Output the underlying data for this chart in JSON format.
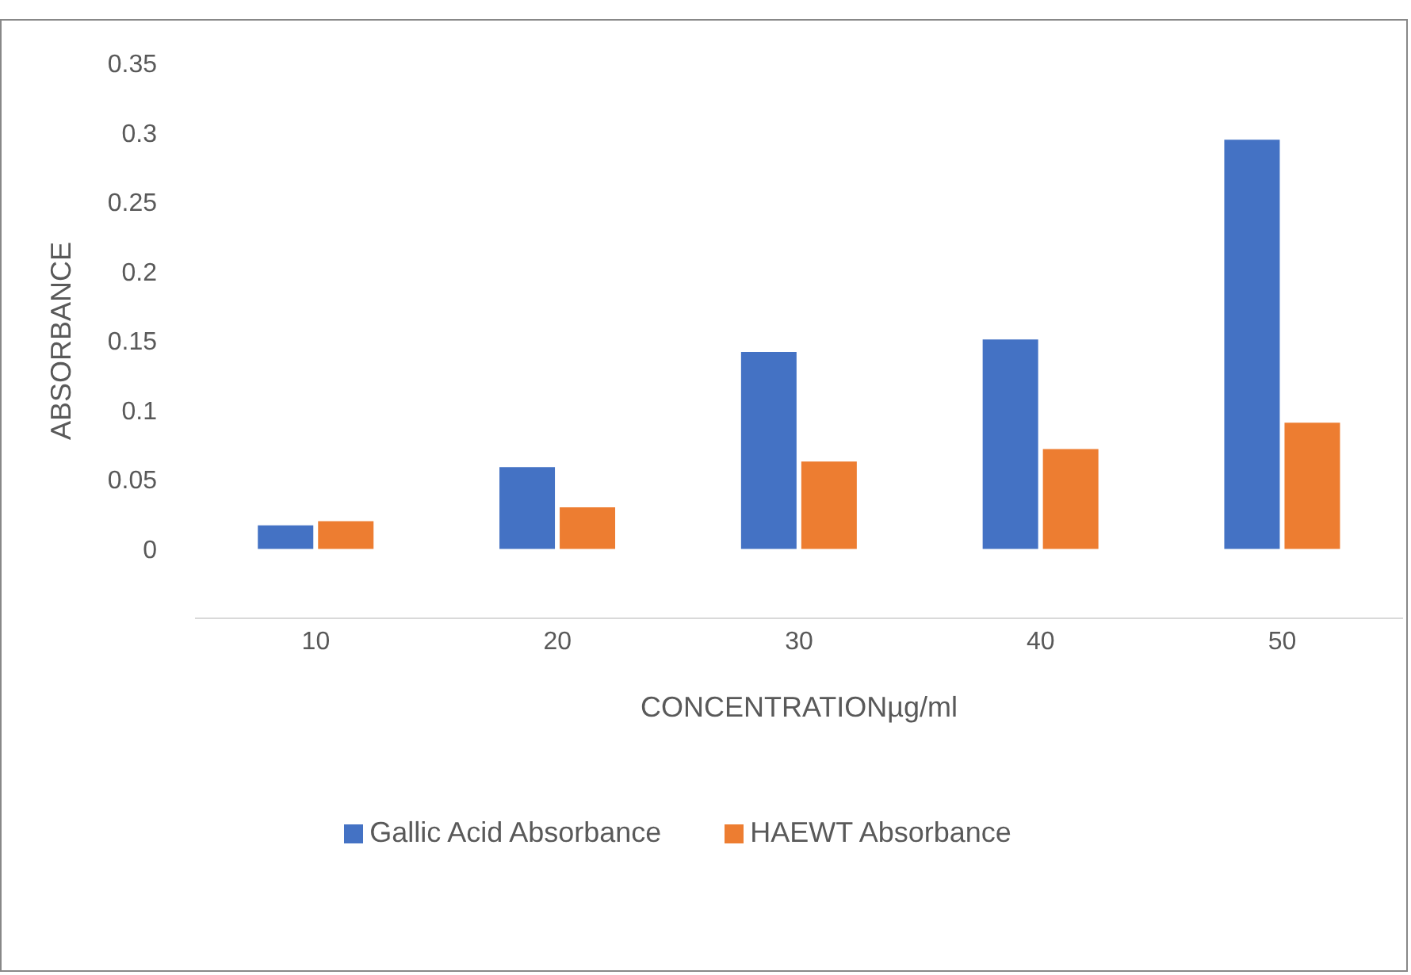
{
  "chart_data": {
    "type": "bar",
    "xlabel": "CONCENTRATIONµg/ml",
    "ylabel": "ABSORBANCE",
    "categories": [
      "10",
      "20",
      "30",
      "40",
      "50"
    ],
    "series": [
      {
        "name": "Gallic Acid Absorbance",
        "color": "#4472c4",
        "values": [
          0.017,
          0.059,
          0.142,
          0.151,
          0.295
        ]
      },
      {
        "name": "HAEWT Absorbance",
        "color": "#ed7d31",
        "values": [
          0.02,
          0.03,
          0.063,
          0.072,
          0.091
        ]
      }
    ],
    "ylim": [
      -0.05,
      0.35
    ],
    "yticks": [
      0,
      0.05,
      0.1,
      0.15,
      0.2,
      0.25,
      0.3,
      0.35
    ],
    "grid": false,
    "legend": "bottom"
  }
}
